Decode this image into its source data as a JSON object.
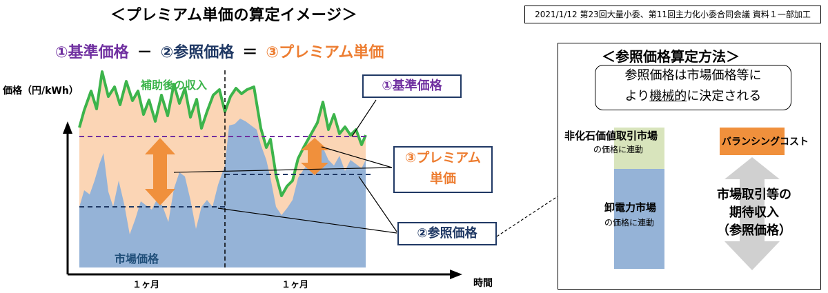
{
  "title": "＜プレミアム単価の算定イメージ＞",
  "source_note": "2021/1/12 第23回大量小委、第11回主力化小委合同会議 資料１一部加工",
  "formula": {
    "term1": "①基準価格",
    "op1": "－",
    "term2": "②参照価格",
    "op2": "＝",
    "term3": "③プレミアム単価"
  },
  "chart": {
    "y_axis_label": "価格（円/kWh）",
    "x_axis_label": "時間",
    "month_labels": [
      "１ヶ月",
      "１ヶ月"
    ],
    "green_line_label": "補助後の収入",
    "market_label": "市場価格",
    "label_base_price": "①基準価格",
    "label_premium_line1": "③プレミアム",
    "label_premium_line2": "単価",
    "label_reference_price": "②参照価格",
    "colors": {
      "green_line": "#3cb44b",
      "orange_fill": "#fbd5b5",
      "blue_fill": "#95b3d7",
      "purple_dash": "#7030a0",
      "navy_dash": "#1f3864",
      "arrow_orange": "#f0903c"
    }
  },
  "panel": {
    "title": "＜参照価格算定方法＞",
    "desc_line1": "参照価格は市場価格等に",
    "desc_line2_pre": "より",
    "desc_line2_u": "機械的",
    "desc_line2_post": "に決定される",
    "non_fossil_title": "非化石価値取引市場",
    "non_fossil_sub": "の価格に連動",
    "balancing": "バランシングコスト",
    "wholesale_title": "卸電力市場",
    "wholesale_sub": "の価格に連動",
    "expected_line1": "市場取引等の",
    "expected_line2": "期待収入",
    "expected_line3": "（参照価格）",
    "colors": {
      "green_block": "#d8e4bc",
      "blue_block": "#95b3d7",
      "orange_block": "#f0903c",
      "gray_arrow": "#d0d0d0"
    }
  }
}
